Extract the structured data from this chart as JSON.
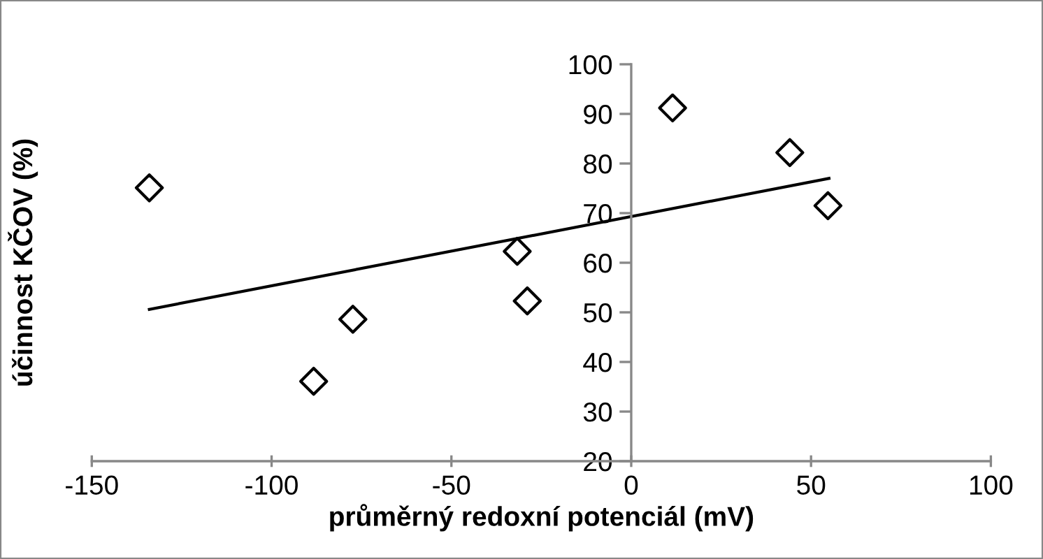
{
  "chart_data": {
    "type": "scatter",
    "xlabel": "průměrný redoxní potenciál (mV)",
    "ylabel": "účinnost KČOV (%)",
    "xlim": [
      -150,
      100
    ],
    "xticks": [
      -150,
      -100,
      -50,
      0,
      50,
      100
    ],
    "ylim": [
      20,
      100
    ],
    "yticks": [
      20,
      30,
      40,
      50,
      60,
      70,
      80,
      90,
      100
    ],
    "grid": false,
    "legend": false,
    "marker": "diamond",
    "series": [
      {
        "color": "#000000",
        "x": [
          -134,
          -88.3,
          -77.4,
          -31.7,
          -28.9,
          11.5,
          44.1,
          54.7
        ],
        "values": [
          75.1,
          36.1,
          48.6,
          62.3,
          52.3,
          91.2,
          82.2,
          71.5
        ]
      },
      {
        "type": "line",
        "color": "#000000",
        "x": [
          -134,
          55
        ],
        "values": [
          50.6,
          77.0
        ],
        "marker": "none",
        "line_style": "solid"
      }
    ]
  }
}
